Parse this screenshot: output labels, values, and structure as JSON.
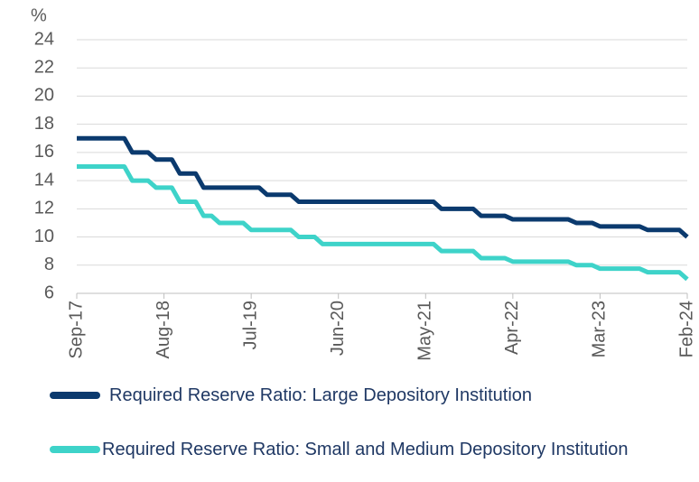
{
  "chart_data": {
    "type": "line",
    "y_label": "%",
    "categories": [
      "Sep-17",
      null,
      null,
      null,
      null,
      null,
      null,
      null,
      null,
      null,
      null,
      "Aug-18",
      null,
      null,
      null,
      null,
      null,
      null,
      null,
      null,
      null,
      null,
      "Jul-19",
      null,
      null,
      null,
      null,
      null,
      null,
      null,
      null,
      null,
      null,
      "Jun-20",
      null,
      null,
      null,
      null,
      null,
      null,
      null,
      null,
      null,
      null,
      "May-21",
      null,
      null,
      null,
      null,
      null,
      null,
      null,
      null,
      null,
      null,
      "Apr-22",
      null,
      null,
      null,
      null,
      null,
      null,
      null,
      null,
      null,
      null,
      "Mar-23",
      null,
      null,
      null,
      null,
      null,
      null,
      null,
      null,
      null,
      null,
      "Feb-24"
    ],
    "series": [
      {
        "name": "Required Reserve Ratio: Large Depository Institution",
        "color": "#0b3a6e",
        "values": [
          17,
          17,
          17,
          17,
          17,
          17,
          17,
          16,
          16,
          16,
          15.5,
          15.5,
          15.5,
          14.5,
          14.5,
          14.5,
          13.5,
          13.5,
          13.5,
          13.5,
          13.5,
          13.5,
          13.5,
          13.5,
          13,
          13,
          13,
          13,
          12.5,
          12.5,
          12.5,
          12.5,
          12.5,
          12.5,
          12.5,
          12.5,
          12.5,
          12.5,
          12.5,
          12.5,
          12.5,
          12.5,
          12.5,
          12.5,
          12.5,
          12.5,
          12,
          12,
          12,
          12,
          12,
          11.5,
          11.5,
          11.5,
          11.5,
          11.25,
          11.25,
          11.25,
          11.25,
          11.25,
          11.25,
          11.25,
          11.25,
          11,
          11,
          11,
          10.75,
          10.75,
          10.75,
          10.75,
          10.75,
          10.75,
          10.5,
          10.5,
          10.5,
          10.5,
          10.5,
          10
        ]
      },
      {
        "name": "Required Reserve Ratio: Small and Medium Depository Institution",
        "color": "#3ed3c9",
        "values": [
          15,
          15,
          15,
          15,
          15,
          15,
          15,
          14,
          14,
          14,
          13.5,
          13.5,
          13.5,
          12.5,
          12.5,
          12.5,
          11.5,
          11.5,
          11,
          11,
          11,
          11,
          10.5,
          10.5,
          10.5,
          10.5,
          10.5,
          10.5,
          10,
          10,
          10,
          9.5,
          9.5,
          9.5,
          9.5,
          9.5,
          9.5,
          9.5,
          9.5,
          9.5,
          9.5,
          9.5,
          9.5,
          9.5,
          9.5,
          9.5,
          9,
          9,
          9,
          9,
          9,
          8.5,
          8.5,
          8.5,
          8.5,
          8.25,
          8.25,
          8.25,
          8.25,
          8.25,
          8.25,
          8.25,
          8.25,
          8,
          8,
          8,
          7.75,
          7.75,
          7.75,
          7.75,
          7.75,
          7.75,
          7.5,
          7.5,
          7.5,
          7.5,
          7.5,
          7
        ]
      }
    ],
    "ylim": [
      6,
      24
    ],
    "yticks": [
      6,
      8,
      10,
      12,
      14,
      16,
      18,
      20,
      22,
      24
    ],
    "grid": true
  }
}
